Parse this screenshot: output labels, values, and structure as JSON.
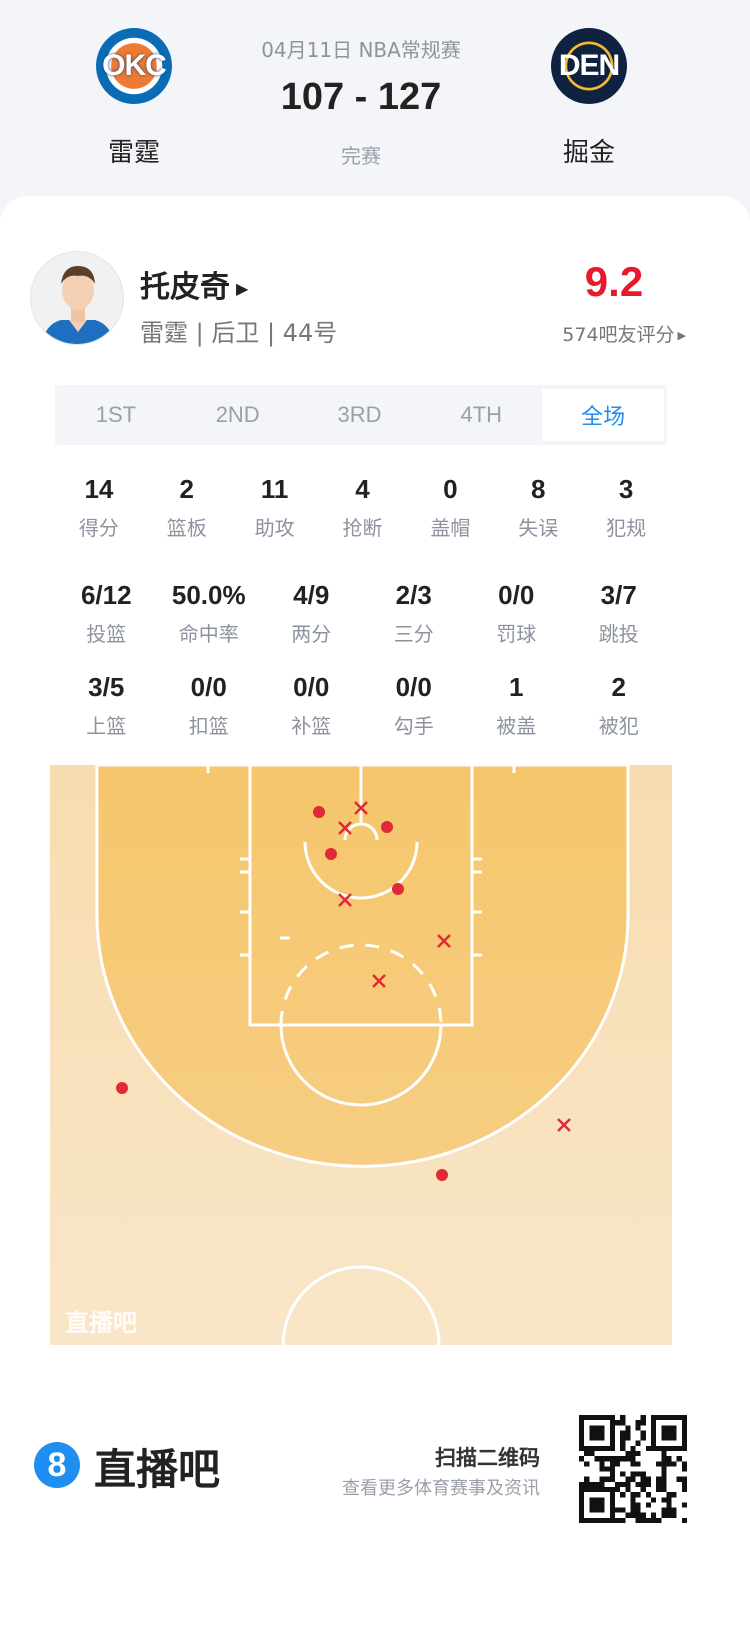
{
  "header": {
    "date_league": "04月11日 NBA常规赛",
    "score": "107 - 127",
    "status": "完赛",
    "home": {
      "name": "雷霆",
      "logo_text": "OKC"
    },
    "away": {
      "name": "掘金",
      "logo_text": "DEN"
    }
  },
  "player": {
    "name": "托皮奇",
    "info": "雷霆 | 后卫 | 44号",
    "rating": "9.2",
    "rating_count": "574吧友评分",
    "rating_color": "#e8192c"
  },
  "tabs": [
    {
      "label": "1ST"
    },
    {
      "label": "2ND"
    },
    {
      "label": "3RD"
    },
    {
      "label": "4TH"
    },
    {
      "label": "全场",
      "active": true
    }
  ],
  "stats_row1": [
    {
      "value": "14",
      "label": "得分"
    },
    {
      "value": "2",
      "label": "篮板"
    },
    {
      "value": "11",
      "label": "助攻"
    },
    {
      "value": "4",
      "label": "抢断"
    },
    {
      "value": "0",
      "label": "盖帽"
    },
    {
      "value": "8",
      "label": "失误"
    },
    {
      "value": "3",
      "label": "犯规"
    }
  ],
  "stats_row2": [
    {
      "value": "6/12",
      "label": "投篮"
    },
    {
      "value": "50.0%",
      "label": "命中率"
    },
    {
      "value": "4/9",
      "label": "两分"
    },
    {
      "value": "2/3",
      "label": "三分"
    },
    {
      "value": "0/0",
      "label": "罚球"
    },
    {
      "value": "3/7",
      "label": "跳投"
    }
  ],
  "stats_row3": [
    {
      "value": "3/5",
      "label": "上篮"
    },
    {
      "value": "0/0",
      "label": "扣篮"
    },
    {
      "value": "0/0",
      "label": "补篮"
    },
    {
      "value": "0/0",
      "label": "勾手"
    },
    {
      "value": "1",
      "label": "被盖"
    },
    {
      "value": "2",
      "label": "被犯"
    }
  ],
  "shot_chart": {
    "watermark": "直播吧",
    "made_marker": "dot",
    "missed_marker": "cross",
    "marker_color": "#e02a35",
    "shots": [
      "made",
      "made",
      "made",
      "made",
      "made",
      "made",
      "missed",
      "missed",
      "missed",
      "missed",
      "missed",
      "missed"
    ]
  },
  "footer": {
    "brand": "直播吧",
    "brand_icon": "8",
    "qr_title": "扫描二维码",
    "qr_sub": "查看更多体育赛事及资讯"
  }
}
